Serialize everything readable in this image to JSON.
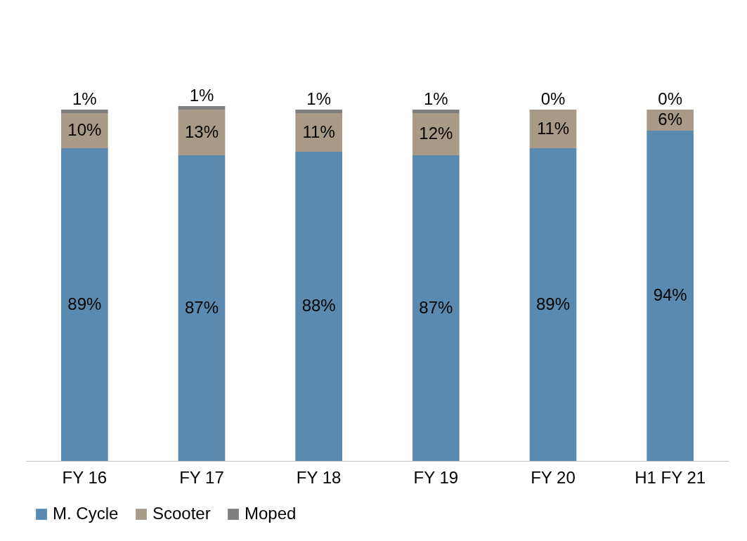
{
  "chart_data": {
    "type": "bar",
    "stacked": true,
    "categories": [
      "FY 16",
      "FY 17",
      "FY 18",
      "FY 19",
      "FY 20",
      "H1 FY 21"
    ],
    "series": [
      {
        "name": "M. Cycle",
        "color": "#5b8ab0",
        "values": [
          89,
          87,
          88,
          87,
          89,
          94
        ],
        "value_labels": [
          "89%",
          "87%",
          "88%",
          "87%",
          "89%",
          "94%"
        ]
      },
      {
        "name": "Scooter",
        "color": "#a89a86",
        "values": [
          10,
          13,
          11,
          12,
          11,
          6
        ],
        "value_labels": [
          "10%",
          "13%",
          "11%",
          "12%",
          "11%",
          "6%"
        ]
      },
      {
        "name": "Moped",
        "color": "#7f7f7f",
        "values": [
          1,
          1,
          1,
          1,
          0,
          0
        ],
        "value_labels": [
          "1%",
          "1%",
          "1%",
          "1%",
          "0%",
          "0%"
        ]
      }
    ],
    "legend": "bottom",
    "grid": false,
    "tick_labels": "x"
  }
}
